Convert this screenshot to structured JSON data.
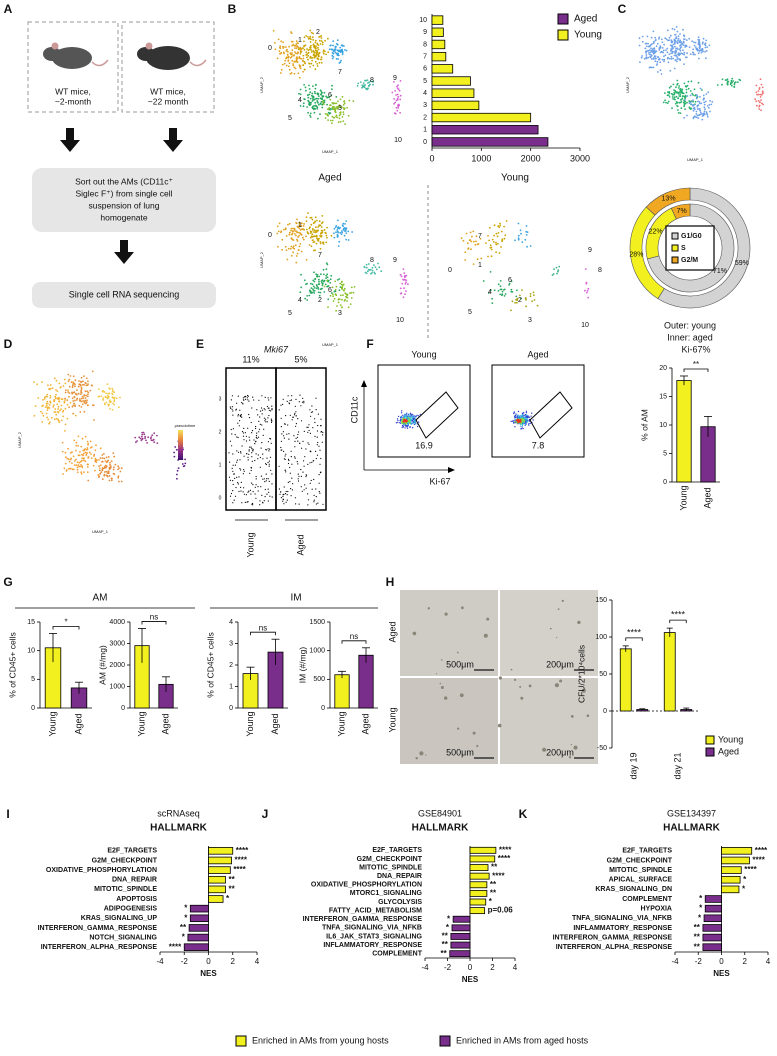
{
  "panel_labels": [
    "A",
    "B",
    "C",
    "D",
    "E",
    "F",
    "G",
    "H",
    "I",
    "J",
    "K"
  ],
  "panel_a": {
    "young_mice": [
      "WT mice,",
      "~2-month"
    ],
    "aged_mice": [
      "WT mice,",
      "~22 month"
    ],
    "sort_step": [
      "Sort out the AMs (CD11c⁺",
      "Siglec F⁺) from single cell",
      "suspension of lung",
      "homogenate"
    ],
    "seq_step": "Single cell RNA sequencing"
  },
  "panel_b": {
    "clusters": [
      "0",
      "1",
      "2",
      "3",
      "4",
      "5",
      "6",
      "7",
      "8",
      "9",
      "10"
    ],
    "umap_axes": [
      "UMAP_1",
      "UMAP_2"
    ],
    "aged": "Aged",
    "young": "Young"
  },
  "panel_d": {
    "legend_title": "pseudotime"
  },
  "panel_e": {
    "title": "Mki67",
    "percents": [
      "11%",
      "5%"
    ],
    "groups": [
      "Young",
      "Aged"
    ],
    "yticks": [
      0,
      1,
      2,
      3
    ]
  },
  "panel_f": {
    "groups": [
      "Young",
      "Aged"
    ],
    "y_axis": "CD11c",
    "x_axis": "Ki-67",
    "gates": [
      "16.9",
      "7.8"
    ]
  },
  "panel_g": {
    "headers": [
      "AM",
      "IM"
    ]
  },
  "panel_h": {
    "rows": [
      "Aged",
      "Young"
    ],
    "scale_bars": [
      "500μm",
      "200μm",
      "500μm",
      "200μm"
    ]
  },
  "legend": [
    "Enriched in AMs from young hosts",
    "Enriched in AMs from aged hosts"
  ],
  "chart_data": [
    {
      "type": "hbar",
      "categories": [
        "0",
        "1",
        "2",
        "3",
        "4",
        "5",
        "6",
        "7",
        "8",
        "9",
        "10"
      ],
      "series": [
        {
          "name": "Aged",
          "color": "#7a2e8c",
          "values": [
            2350,
            2150,
            null,
            null,
            null,
            null,
            null,
            null,
            null,
            null,
            null
          ]
        },
        {
          "name": "Young",
          "color": "#f2f01e",
          "values": [
            null,
            null,
            2000,
            950,
            850,
            780,
            420,
            280,
            260,
            230,
            220
          ]
        }
      ],
      "xlim": [
        0,
        3000
      ],
      "xticks": [
        0,
        1000,
        2000,
        3000
      ]
    },
    {
      "type": "donut",
      "categories": [
        "G1/G0",
        "S",
        "G2/M"
      ],
      "colors": [
        "#d3d3d3",
        "#f2f01e",
        "#f0a823"
      ],
      "series": [
        {
          "name": "Outer: young",
          "values": [
            59,
            28,
            13
          ],
          "value_labels": [
            "59%",
            "28%",
            "13%"
          ]
        },
        {
          "name": "Inner: aged",
          "values": [
            71,
            22,
            7
          ],
          "value_labels": [
            "71%",
            "22%",
            "7%"
          ]
        }
      ]
    },
    {
      "type": "bar",
      "title": "Ki-67%",
      "ylabel": "% of AM",
      "categories": [
        "Young",
        "Aged"
      ],
      "values": [
        17.8,
        9.7
      ],
      "errors": [
        0.8,
        1.8
      ],
      "colors": [
        "#f2f01e",
        "#7a2e8c"
      ],
      "ylim": [
        0,
        20
      ],
      "yticks": [
        0,
        5,
        10,
        15,
        20
      ],
      "significance": "**"
    },
    {
      "type": "bar",
      "ylabel": "% of CD45+ cells",
      "categories": [
        "Young",
        "Aged"
      ],
      "values": [
        10.5,
        3.5
      ],
      "errors": [
        2.5,
        1.0
      ],
      "colors": [
        "#f2f01e",
        "#7a2e8c"
      ],
      "ylim": [
        0,
        15
      ],
      "yticks": [
        0,
        5,
        10,
        15
      ],
      "significance": "*"
    },
    {
      "type": "bar",
      "ylabel": "AM (#/mg)",
      "categories": [
        "Young",
        "Aged"
      ],
      "values": [
        2900,
        1100
      ],
      "errors": [
        800,
        350
      ],
      "colors": [
        "#f2f01e",
        "#7a2e8c"
      ],
      "ylim": [
        0,
        4000
      ],
      "yticks": [
        0,
        1000,
        2000,
        3000,
        4000
      ],
      "significance": "ns"
    },
    {
      "type": "bar",
      "ylabel": "% of CD45+ cells",
      "categories": [
        "Young",
        "Aged"
      ],
      "values": [
        1.6,
        2.6
      ],
      "errors": [
        0.3,
        0.6
      ],
      "colors": [
        "#f2f01e",
        "#7a2e8c"
      ],
      "ylim": [
        0,
        4
      ],
      "yticks": [
        0,
        1,
        2,
        3,
        4
      ],
      "significance": "ns"
    },
    {
      "type": "bar",
      "ylabel": "IM (#/mg)",
      "categories": [
        "Young",
        "Aged"
      ],
      "values": [
        580,
        920
      ],
      "errors": [
        60,
        130
      ],
      "colors": [
        "#f2f01e",
        "#7a2e8c"
      ],
      "ylim": [
        0,
        1500
      ],
      "yticks": [
        0,
        500,
        1000,
        1500
      ],
      "significance": "ns"
    },
    {
      "type": "groupbar",
      "ylabel": "CFU/2*10⁴cells",
      "categories": [
        "day 19",
        "day 21"
      ],
      "series": [
        {
          "name": "Young",
          "color": "#f2f01e",
          "values": [
            84,
            106
          ],
          "errors": [
            4,
            6
          ]
        },
        {
          "name": "Aged",
          "color": "#7a2e8c",
          "values": [
            2,
            2
          ],
          "errors": [
            1,
            2
          ]
        }
      ],
      "significance": [
        "****",
        "****"
      ],
      "ylim": [
        -50,
        150
      ],
      "yticks": [
        -50,
        0,
        50,
        100,
        150
      ]
    },
    {
      "type": "nes",
      "title": "scRNAseq",
      "subtitle": "HALLMARK",
      "xlabel": "NES",
      "categories": [
        "E2F_TARGETS",
        "G2M_CHECKPOINT",
        "OXIDATIVE_PHOSPHORYLATION",
        "DNA_REPAIR",
        "MITOTIC_SPINDLE",
        "APOPTOSIS",
        "ADIPOGENESIS",
        "KRAS_SIGNALING_UP",
        "INTERFERON_GAMMA_RESPONSE",
        "NOTCH_SIGNALING",
        "INTERFERON_ALPHA_RESPONSE"
      ],
      "values": [
        2.0,
        1.9,
        1.8,
        1.4,
        1.4,
        1.2,
        -1.5,
        -1.5,
        -1.6,
        -1.7,
        -2.0
      ],
      "significance": [
        "****",
        "****",
        "****",
        "**",
        "**",
        "*",
        "*",
        "*",
        "**",
        "*",
        "****"
      ],
      "colors": [
        "#f2f01e",
        "#7a2e8c"
      ],
      "xlim": [
        -4,
        4
      ],
      "xticks": [
        -4,
        -2,
        0,
        2,
        4
      ]
    },
    {
      "type": "nes",
      "title": "GSE84901",
      "subtitle": "HALLMARK",
      "xlabel": "NES",
      "categories": [
        "E2F_TARGETS",
        "G2M_CHECKPOINT",
        "MITOTIC_SPINDLE",
        "DNA_REPAIR",
        "OXIDATIVE_PHOSPHORYLATION",
        "MTORC1_SIGNALING",
        "GLYCOLYSIS",
        "FATTY_ACID_METABOLISM",
        "INTERFERON_GAMMA_RESPONSE",
        "TNFA_SIGNALING_VIA_NFKB",
        "IL6_JAK_STAT3_SIGNALING",
        "INFLAMMATORY_RESPONSE",
        "COMPLEMENT"
      ],
      "values": [
        2.3,
        2.2,
        1.6,
        1.7,
        1.5,
        1.5,
        1.4,
        1.3,
        -1.5,
        -1.6,
        -1.7,
        -1.7,
        -1.8
      ],
      "significance": [
        "****",
        "****",
        "**",
        "****",
        "**",
        "**",
        "*",
        "p=0.06",
        "*",
        "*",
        "**",
        "**",
        "**"
      ],
      "colors": [
        "#f2f01e",
        "#7a2e8c"
      ],
      "xlim": [
        -4,
        4
      ],
      "xticks": [
        -4,
        -2,
        0,
        2,
        4
      ]
    },
    {
      "type": "nes",
      "title": "GSE134397",
      "subtitle": "HALLMARK",
      "xlabel": "NES",
      "categories": [
        "E2F_TARGETS",
        "G2M_CHECKPOINT",
        "MITOTIC_SPINDLE",
        "APICAL_SURFACE",
        "KRAS_SIGNALING_DN",
        "COMPLEMENT",
        "HYPOXIA",
        "TNFA_SIGNALING_VIA_NFKB",
        "INFLAMMATORY_RESPONSE",
        "INTERFERON_GAMMA_RESPONSE",
        "INTERFERON_ALPHA_RESPONSE"
      ],
      "values": [
        2.6,
        2.4,
        1.7,
        1.6,
        1.5,
        -1.4,
        -1.4,
        -1.5,
        -1.6,
        -1.6,
        -1.6
      ],
      "significance": [
        "****",
        "****",
        "****",
        "*",
        "*",
        "*",
        "*",
        "*",
        "**",
        "**",
        "**"
      ],
      "colors": [
        "#f2f01e",
        "#7a2e8c"
      ],
      "xlim": [
        -4,
        4
      ],
      "xticks": [
        -4,
        -2,
        0,
        2,
        4
      ]
    }
  ]
}
